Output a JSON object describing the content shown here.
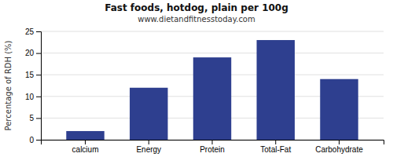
{
  "chart_data": {
    "type": "bar",
    "title": "Fast foods, hotdog, plain per 100g",
    "subtitle": "www.dietandfitnesstoday.com",
    "categories": [
      "calcium",
      "Energy",
      "Protein",
      "Total-Fat",
      "Carbohydrate"
    ],
    "values": [
      2,
      12,
      19,
      23,
      14
    ],
    "color": "#2e3f8f",
    "ylabel": "Percentage of RDH (%)",
    "ylim": [
      0,
      25
    ],
    "yticks": [
      0,
      5,
      10,
      15,
      20,
      25
    ],
    "grid": true
  }
}
